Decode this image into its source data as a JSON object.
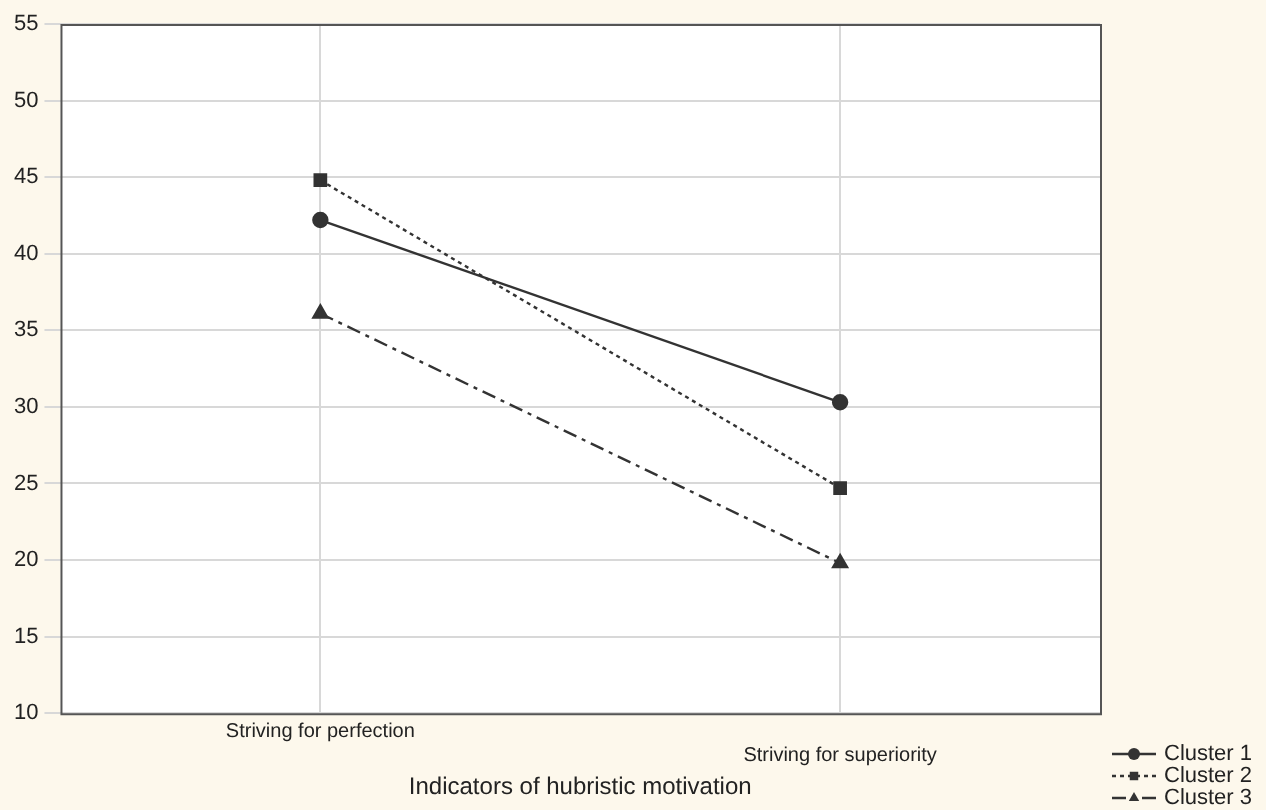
{
  "chart_data": {
    "type": "line",
    "xlabel": "Indicators of hubristic motivation",
    "categories": [
      "Striving for perfection",
      "Striving for superiority"
    ],
    "series": [
      {
        "name": "Cluster 1",
        "color": "#333333",
        "values": [
          42.2,
          30.3
        ],
        "marker": "circle",
        "line_style": "solid"
      },
      {
        "name": "Cluster 2",
        "color": "#333333",
        "values": [
          44.8,
          24.7
        ],
        "marker": "square",
        "line_style": "dotted"
      },
      {
        "name": "Cluster 3",
        "color": "#333333",
        "values": [
          36.1,
          19.8
        ],
        "marker": "triangle",
        "line_style": "dashed"
      }
    ],
    "ylim": [
      10,
      55
    ],
    "yticks": [
      10,
      15,
      20,
      25,
      30,
      35,
      40,
      45,
      50,
      55
    ],
    "grid": true,
    "legend": "bottom right"
  }
}
